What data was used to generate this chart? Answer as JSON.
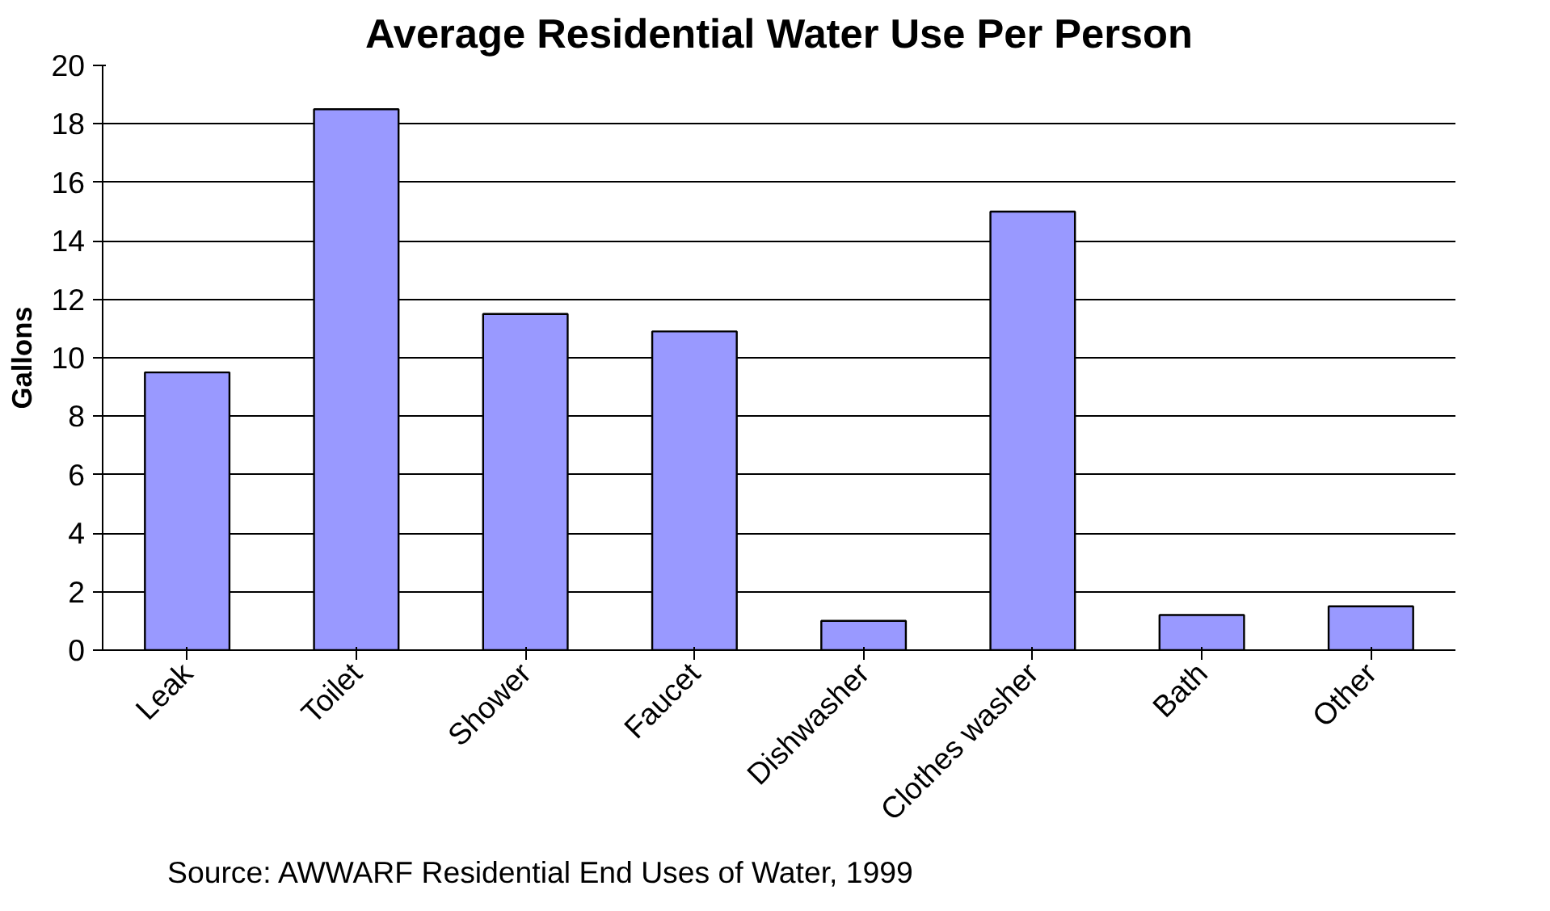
{
  "chart_data": {
    "type": "bar",
    "title": "Average Residential Water Use Per Person",
    "ylabel": "Gallons",
    "categories": [
      "Leak",
      "Toilet",
      "Shower",
      "Faucet",
      "Dishwasher",
      "Clothes washer",
      "Bath",
      "Other"
    ],
    "values": [
      9.5,
      18.5,
      11.5,
      10.9,
      1.0,
      15.0,
      1.2,
      1.5
    ],
    "color": "#9999ff",
    "ylim": [
      0,
      20
    ],
    "yticks": [
      0,
      2,
      4,
      6,
      8,
      10,
      12,
      14,
      16,
      18,
      20
    ],
    "grid": "y",
    "annotations": [
      "Source: AWWARF Residential End Uses of Water, 1999"
    ]
  }
}
